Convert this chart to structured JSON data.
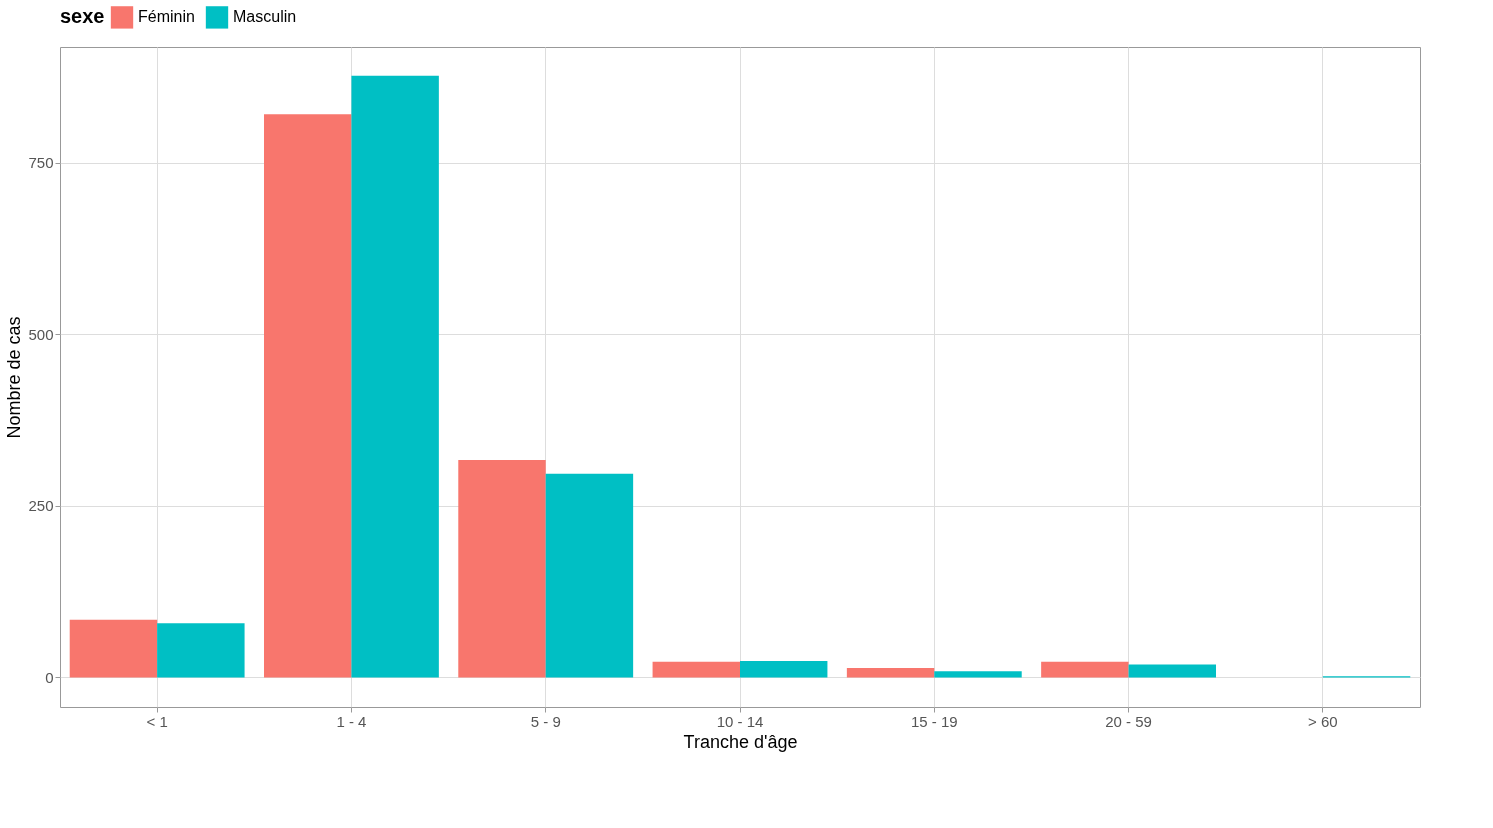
{
  "chart_data": {
    "type": "bar",
    "xlabel": "Tranche d'âge",
    "ylabel": "Nombre de cas",
    "legend_title": "sexe",
    "categories": [
      "< 1",
      "1 - 4",
      "5 - 9",
      "10 - 14",
      "15 - 19",
      "20 - 59",
      "> 60"
    ],
    "series": [
      {
        "name": "Féminin",
        "color": "#f8766d",
        "values": [
          84,
          821,
          317,
          23,
          14,
          23,
          null
        ]
      },
      {
        "name": "Masculin",
        "color": "#00bfc4",
        "values": [
          79,
          877,
          297,
          24,
          9,
          19,
          2
        ]
      }
    ],
    "ylim": [
      -43,
      919
    ],
    "yticks": [
      0,
      250,
      500,
      750
    ],
    "grid": true,
    "legend": "top"
  }
}
